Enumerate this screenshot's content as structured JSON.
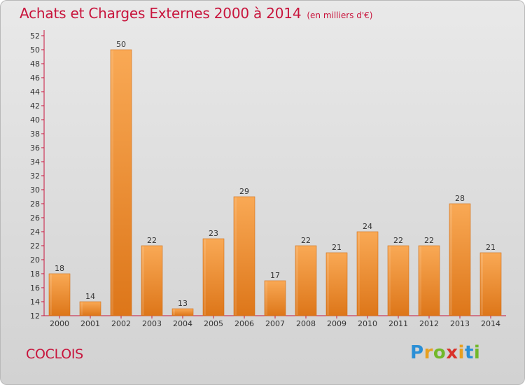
{
  "header": {
    "title": "Achats et Charges Externes 2000 à 2014",
    "unit": "(en milliers d'€)"
  },
  "footer": {
    "commune": "COCLOIS",
    "logo": [
      "P",
      "r",
      "o",
      "x",
      "i",
      "t",
      "i"
    ]
  },
  "colors": {
    "title": "#c8143c",
    "bar_light": "#f9a955",
    "bar_dark": "#e07a1e",
    "axis": "#c8143c"
  },
  "chart_data": {
    "type": "bar",
    "categories": [
      "2000",
      "2001",
      "2002",
      "2003",
      "2004",
      "2005",
      "2006",
      "2007",
      "2008",
      "2009",
      "2010",
      "2011",
      "2012",
      "2013",
      "2014"
    ],
    "values": [
      18,
      14,
      50,
      22,
      13,
      23,
      29,
      17,
      22,
      21,
      24,
      22,
      22,
      28,
      21
    ],
    "ylim": [
      12,
      52
    ],
    "yticks": [
      12,
      14,
      16,
      18,
      20,
      22,
      24,
      26,
      28,
      30,
      32,
      34,
      36,
      38,
      40,
      42,
      44,
      46,
      48,
      50,
      52
    ],
    "grid": false,
    "legend": "none",
    "title": "Achats et Charges Externes 2000 à 2014",
    "xlabel": "",
    "ylabel": ""
  }
}
